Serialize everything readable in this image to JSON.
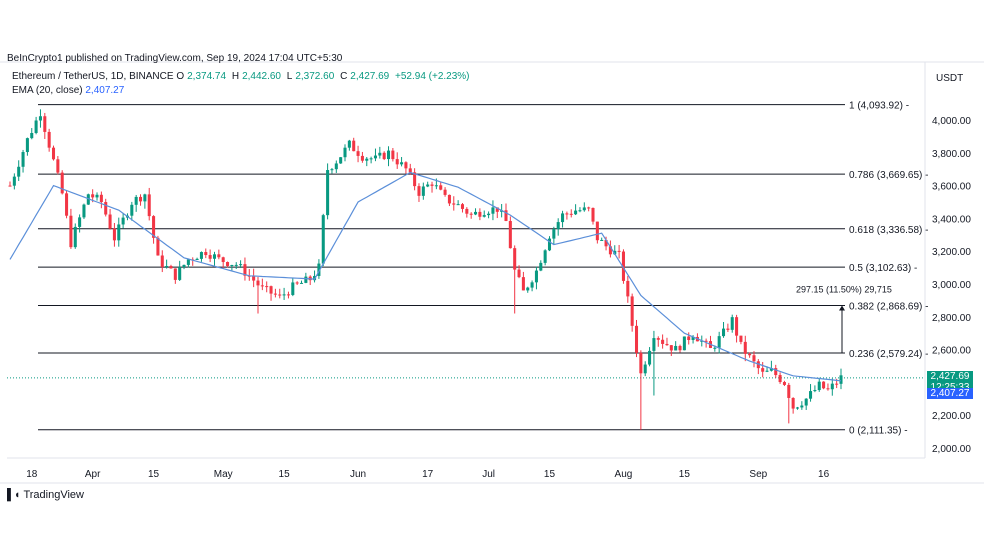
{
  "header": {
    "published": "BeInCrypto1 published on TradingView.com, Sep 19, 2024 17:04 UTC+5:30",
    "symbol": "Ethereum / TetherUS, 1D, BINANCE",
    "ohlc": {
      "o_label": "O",
      "o": "2,374.74",
      "h_label": "H",
      "h": "2,442.60",
      "l_label": "L",
      "l": "2,372.60",
      "c_label": "C",
      "c": "2,427.69",
      "change": "+52.94 (+2.23%)"
    },
    "ema_label": "EMA (20, close)",
    "ema_value": "2,407.27",
    "currency": "USDT"
  },
  "footer": {
    "brand": "TradingView"
  },
  "colors": {
    "up": "#089981",
    "down": "#f23645",
    "ema": "#5b8fd9",
    "fib": "#131722",
    "current": "#089981",
    "ema_box": "#2962ff"
  },
  "price_boxes": {
    "current_price": "2,427.69",
    "countdown": "12:25:33",
    "ema_price": "2,407.27"
  },
  "measure": {
    "label": "297.15 (11.50%) 29,715"
  },
  "chart_data": {
    "type": "candlestick",
    "y_range": [
      1980,
      4200
    ],
    "y_ticks": [
      "4,000.00",
      "3,800.00",
      "3,600.00",
      "3,400.00",
      "3,200.00",
      "3,000.00",
      "2,800.00",
      "2,600.00",
      "2,400.00",
      "2,200.00",
      "2,000.00"
    ],
    "y_tick_values": [
      4000,
      3800,
      3600,
      3400,
      3200,
      3000,
      2800,
      2600,
      2400,
      2200,
      2000
    ],
    "x_ticks": [
      {
        "label": "18",
        "day": 5
      },
      {
        "label": "Apr",
        "day": 19
      },
      {
        "label": "15",
        "day": 33
      },
      {
        "label": "May",
        "day": 49
      },
      {
        "label": "15",
        "day": 63
      },
      {
        "label": "Jun",
        "day": 80
      },
      {
        "label": "17",
        "day": 96
      },
      {
        "label": "Jul",
        "day": 110
      },
      {
        "label": "15",
        "day": 124
      },
      {
        "label": "Aug",
        "day": 141
      },
      {
        "label": "15",
        "day": 155
      },
      {
        "label": "Sep",
        "day": 172
      },
      {
        "label": "16",
        "day": 187
      }
    ],
    "fib_levels": [
      {
        "label": "1 (4,093.92)",
        "value": 4093.92
      },
      {
        "label": "0.786 (3,669.65)",
        "value": 3669.65
      },
      {
        "label": "0.618 (3,336.58)",
        "value": 3336.58
      },
      {
        "label": "0.5 (3,102.63)",
        "value": 3102.63
      },
      {
        "label": "0.382 (2,868.69)",
        "value": 2868.69
      },
      {
        "label": "0.236 (2,579.24)",
        "value": 2579.24
      },
      {
        "label": "0 (2,111.35)",
        "value": 2111.35
      }
    ],
    "current_price": 2427.69,
    "ema_price": 2407.27,
    "ema_anchors": [
      [
        0,
        3150
      ],
      [
        10,
        3600
      ],
      [
        25,
        3450
      ],
      [
        40,
        3160
      ],
      [
        55,
        3050
      ],
      [
        70,
        3030
      ],
      [
        80,
        3500
      ],
      [
        92,
        3680
      ],
      [
        103,
        3590
      ],
      [
        115,
        3420
      ],
      [
        125,
        3240
      ],
      [
        136,
        3310
      ],
      [
        145,
        2930
      ],
      [
        155,
        2700
      ],
      [
        170,
        2530
      ],
      [
        180,
        2440
      ],
      [
        192,
        2407
      ]
    ],
    "price_anchors": [
      [
        0,
        3600
      ],
      [
        4,
        3880
      ],
      [
        7,
        4050
      ],
      [
        9,
        3850
      ],
      [
        12,
        3550
      ],
      [
        14,
        3250
      ],
      [
        18,
        3550
      ],
      [
        21,
        3500
      ],
      [
        24,
        3280
      ],
      [
        28,
        3500
      ],
      [
        31,
        3550
      ],
      [
        34,
        3150
      ],
      [
        38,
        3050
      ],
      [
        41,
        3150
      ],
      [
        45,
        3200
      ],
      [
        48,
        3150
      ],
      [
        52,
        3120
      ],
      [
        55,
        3050
      ],
      [
        58,
        2970
      ],
      [
        62,
        2920
      ],
      [
        65,
        2980
      ],
      [
        69,
        3030
      ],
      [
        71,
        3100
      ],
      [
        73,
        3700
      ],
      [
        75,
        3750
      ],
      [
        78,
        3850
      ],
      [
        81,
        3780
      ],
      [
        84,
        3760
      ],
      [
        87,
        3800
      ],
      [
        91,
        3700
      ],
      [
        94,
        3560
      ],
      [
        97,
        3620
      ],
      [
        100,
        3520
      ],
      [
        103,
        3480
      ],
      [
        106,
        3420
      ],
      [
        109,
        3450
      ],
      [
        112,
        3460
      ],
      [
        114,
        3380
      ],
      [
        116,
        3080
      ],
      [
        118,
        2950
      ],
      [
        121,
        3080
      ],
      [
        124,
        3300
      ],
      [
        127,
        3420
      ],
      [
        130,
        3450
      ],
      [
        133,
        3450
      ],
      [
        135,
        3280
      ],
      [
        137,
        3230
      ],
      [
        140,
        3170
      ],
      [
        142,
        2900
      ],
      [
        145,
        2450
      ],
      [
        148,
        2700
      ],
      [
        150,
        2650
      ],
      [
        153,
        2600
      ],
      [
        157,
        2700
      ],
      [
        161,
        2600
      ],
      [
        164,
        2700
      ],
      [
        166,
        2780
      ],
      [
        168,
        2620
      ],
      [
        170,
        2550
      ],
      [
        173,
        2450
      ],
      [
        175,
        2470
      ],
      [
        178,
        2400
      ],
      [
        180,
        2250
      ],
      [
        183,
        2300
      ],
      [
        186,
        2380
      ],
      [
        188,
        2350
      ],
      [
        190,
        2400
      ],
      [
        191,
        2428
      ]
    ],
    "wick_spikes": [
      [
        145,
        2111
      ],
      [
        148,
        2320
      ],
      [
        179,
        2150
      ],
      [
        116,
        2820
      ],
      [
        57,
        2820
      ]
    ],
    "x_day_range": [
      0,
      191
    ]
  }
}
